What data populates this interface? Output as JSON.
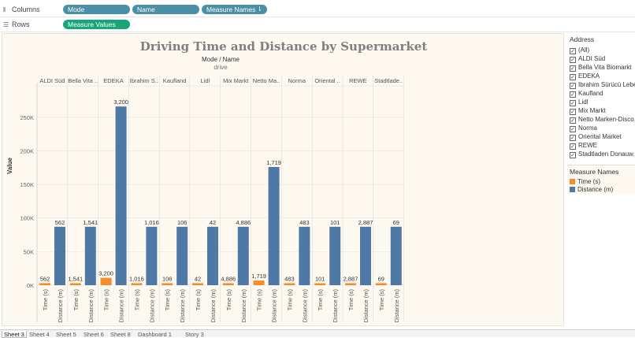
{
  "shelves": {
    "columns": {
      "label": "Columns",
      "pills": [
        "Mode",
        "Name",
        "Measure Names"
      ]
    },
    "rows": {
      "label": "Rows",
      "pills": [
        "Measure Values"
      ]
    }
  },
  "tabs": [
    "Sheet 3",
    "Sheet 4",
    "Sheet 5",
    "Sheet 6",
    "Sheet 8",
    "Dashboard 1",
    "Story 3"
  ],
  "filter": {
    "title": "Address",
    "items": [
      "(All)",
      "ALDI Süd",
      "Bella Vita Biomarkt",
      "EDEKA",
      "Ibrahim Sürücü Lebe..",
      "Kaufland",
      "Lidl",
      "Mix Markt",
      "Netto Marken-Disco..",
      "Norma",
      "Oriental Market",
      "REWE",
      "Stadtladen Donauw.."
    ]
  },
  "legend": {
    "title": "Measure Names",
    "items": [
      {
        "label": "Time (s)",
        "color": "#f28e2b"
      },
      {
        "label": "Distance (m)",
        "color": "#4e79a7"
      }
    ]
  },
  "chart_data": {
    "type": "bar",
    "title": "Driving Time and Distance by Supermarket",
    "header_title": "Mode / Name",
    "header_sub": "drive",
    "ylabel": "Value",
    "ylim": [
      0,
      285000
    ],
    "yticks": [
      0,
      50000,
      100000,
      150000,
      200000,
      250000
    ],
    "ytick_labels": [
      "0K",
      "50K",
      "100K",
      "150K",
      "200K",
      "250K"
    ],
    "categories": [
      "ALDI Süd",
      "Bella Vita ..",
      "EDEKA",
      "Ibrahim S..",
      "Kaufland",
      "Lidl",
      "Mix Markt",
      "Netto Ma..",
      "Norma",
      "Oriental ..",
      "REWE",
      "Stadtlade.."
    ],
    "series": [
      {
        "name": "Time (s)",
        "x_label": "Time (s)",
        "color": "#f28e2b",
        "values": [
          3000,
          3000,
          11000,
          3000,
          3000,
          3000,
          3000,
          7000,
          3000,
          3000,
          3000,
          3000
        ],
        "labels": [
          "562",
          "1,541",
          "3,200",
          "1,016",
          "106",
          "42",
          "4,886",
          "1,719",
          "483",
          "101",
          "2,887",
          "69"
        ]
      },
      {
        "name": "Distance (m)",
        "x_label": "Distance (m)",
        "color": "#4e79a7",
        "values": [
          87000,
          87000,
          266000,
          87000,
          87000,
          87000,
          87000,
          176000,
          87000,
          87000,
          87000,
          87000
        ],
        "labels": [
          "562",
          "1,541",
          "3,200",
          "1,016",
          "106",
          "42",
          "4,886",
          "1,719",
          "483",
          "101",
          "2,887",
          "69"
        ]
      }
    ]
  }
}
